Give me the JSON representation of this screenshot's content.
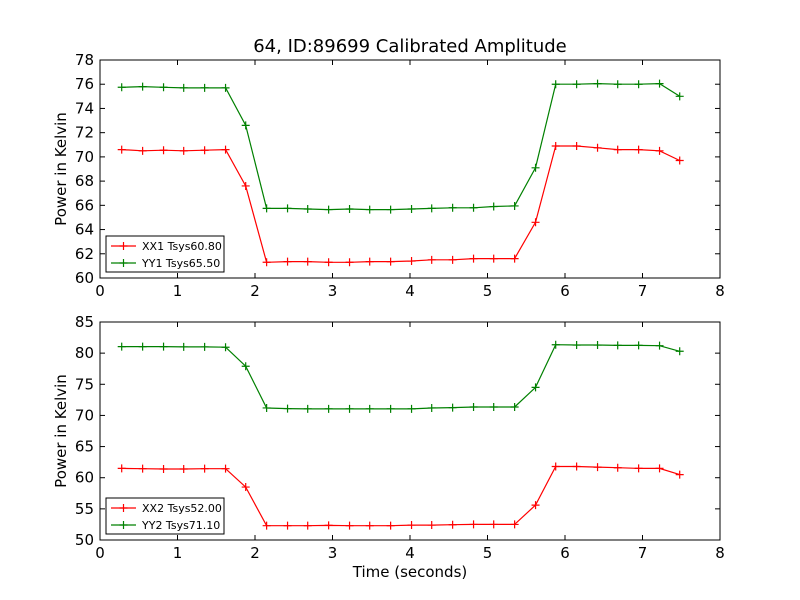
{
  "figure_title": "64, ID:89699 Calibrated Amplitude",
  "chart_data": [
    {
      "type": "line",
      "title": "64, ID:89699 Calibrated Amplitude",
      "xlabel": "",
      "ylabel": "Power in Kelvin",
      "xlim": [
        0,
        8
      ],
      "ylim": [
        60,
        78
      ],
      "xticks": [
        "0",
        "1",
        "2",
        "3",
        "4",
        "5",
        "6",
        "7",
        "8"
      ],
      "yticks": [
        "60",
        "62",
        "64",
        "66",
        "68",
        "70",
        "72",
        "74",
        "76",
        "78"
      ],
      "grid": false,
      "legend_position": "lower-left",
      "x": [
        0.28,
        0.55,
        0.82,
        1.08,
        1.35,
        1.62,
        1.88,
        2.15,
        2.42,
        2.68,
        2.95,
        3.22,
        3.48,
        3.75,
        4.02,
        4.28,
        4.55,
        4.82,
        5.08,
        5.35,
        5.62,
        5.88,
        6.15,
        6.42,
        6.68,
        6.95,
        7.22,
        7.48
      ],
      "series": [
        {
          "name": "XX1 Tsys60.80",
          "color": "#ff0000",
          "values": [
            70.6,
            70.5,
            70.55,
            70.5,
            70.55,
            70.6,
            67.6,
            61.3,
            61.35,
            61.35,
            61.3,
            61.3,
            61.35,
            61.35,
            61.4,
            61.5,
            61.5,
            61.6,
            61.6,
            61.6,
            64.6,
            70.9,
            70.9,
            70.75,
            70.6,
            70.6,
            70.5,
            69.7
          ]
        },
        {
          "name": "YY1 Tsys65.50",
          "color": "#008000",
          "values": [
            75.75,
            75.8,
            75.75,
            75.7,
            75.7,
            75.7,
            72.6,
            65.75,
            65.75,
            65.7,
            65.65,
            65.7,
            65.65,
            65.65,
            65.7,
            65.75,
            65.8,
            65.8,
            65.9,
            65.95,
            69.1,
            76.0,
            76.0,
            76.05,
            76.0,
            76.0,
            76.05,
            75.0
          ]
        }
      ]
    },
    {
      "type": "line",
      "title": "",
      "xlabel": "Time (seconds)",
      "ylabel": "Power in Kelvin",
      "xlim": [
        0,
        8
      ],
      "ylim": [
        50,
        85
      ],
      "xticks": [
        "0",
        "1",
        "2",
        "3",
        "4",
        "5",
        "6",
        "7",
        "8"
      ],
      "yticks": [
        "50",
        "55",
        "60",
        "65",
        "70",
        "75",
        "80",
        "85"
      ],
      "grid": false,
      "legend_position": "lower-left",
      "x": [
        0.28,
        0.55,
        0.82,
        1.08,
        1.35,
        1.62,
        1.88,
        2.15,
        2.42,
        2.68,
        2.95,
        3.22,
        3.48,
        3.75,
        4.02,
        4.28,
        4.55,
        4.82,
        5.08,
        5.35,
        5.62,
        5.88,
        6.15,
        6.42,
        6.68,
        6.95,
        7.22,
        7.48
      ],
      "series": [
        {
          "name": "XX2 Tsys52.00",
          "color": "#ff0000",
          "values": [
            61.5,
            61.45,
            61.4,
            61.4,
            61.45,
            61.45,
            58.5,
            52.3,
            52.3,
            52.3,
            52.35,
            52.3,
            52.3,
            52.3,
            52.4,
            52.4,
            52.45,
            52.5,
            52.5,
            52.5,
            55.6,
            61.8,
            61.8,
            61.7,
            61.6,
            61.5,
            61.5,
            60.5
          ]
        },
        {
          "name": "YY2 Tsys71.10",
          "color": "#008000",
          "values": [
            81.05,
            81.05,
            81.05,
            81.0,
            81.0,
            80.95,
            77.9,
            71.2,
            71.1,
            71.05,
            71.05,
            71.05,
            71.05,
            71.05,
            71.05,
            71.2,
            71.25,
            71.35,
            71.35,
            71.35,
            74.5,
            81.35,
            81.3,
            81.3,
            81.25,
            81.25,
            81.2,
            80.3
          ]
        }
      ]
    }
  ]
}
